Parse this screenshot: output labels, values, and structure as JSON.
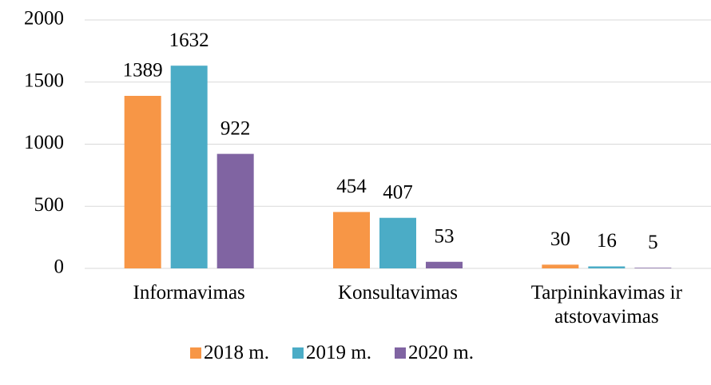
{
  "chart_data": {
    "type": "bar",
    "categories": [
      "Informavimas",
      "Konsultavimas",
      "Tarpininkavimas ir atstovavimas"
    ],
    "series": [
      {
        "name": "2018 m.",
        "color": "#f79646",
        "values": [
          1389,
          454,
          30
        ]
      },
      {
        "name": "2019 m.",
        "color": "#4bacc6",
        "values": [
          1632,
          407,
          16
        ]
      },
      {
        "name": "2020 m.",
        "color": "#8064a2",
        "values": [
          922,
          53,
          5
        ]
      }
    ],
    "ylim": [
      0,
      2000
    ],
    "yticks": [
      0,
      500,
      1000,
      1500,
      2000
    ],
    "grid": true,
    "legend": "bottom"
  }
}
